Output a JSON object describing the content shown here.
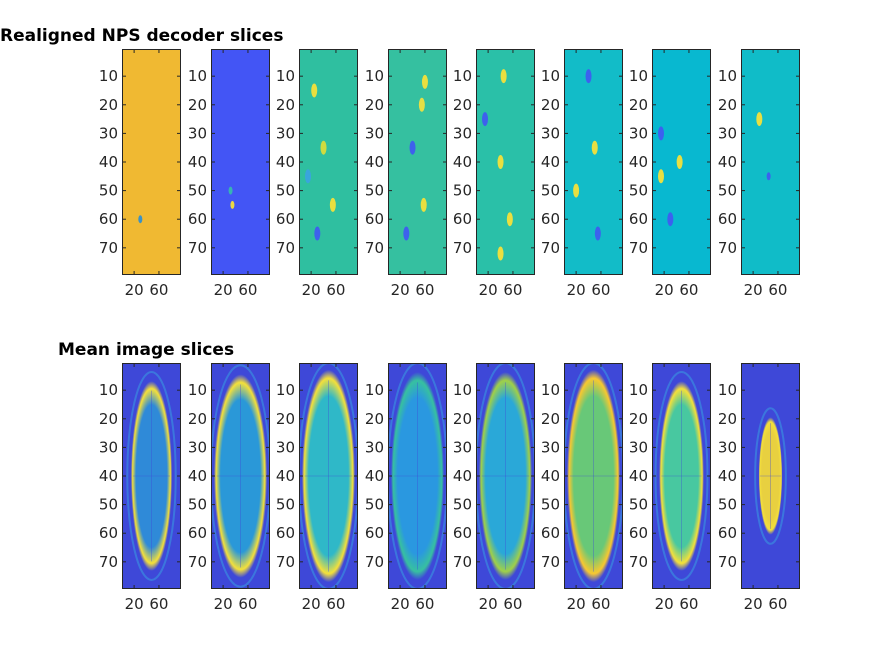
{
  "figure": {
    "rows": [
      {
        "title": "Realigned NPS decoder slices",
        "y_ticks": [
          "10",
          "20",
          "30",
          "40",
          "50",
          "60",
          "70"
        ],
        "x_ticks": [
          "20",
          "60"
        ],
        "panels": [
          {
            "slice": 1,
            "background": "#f0b932",
            "blobs": [
              {
                "y": 60,
                "x": 30,
                "color": "#2f8fd0",
                "size": "small"
              }
            ]
          },
          {
            "slice": 2,
            "background": "#4355f5",
            "blobs": [
              {
                "y": 55,
                "x": 35,
                "color": "#f4e03a",
                "size": "small"
              },
              {
                "y": 50,
                "x": 32,
                "color": "#37b8b0",
                "size": "small"
              }
            ]
          },
          {
            "slice": 3,
            "background": "#2fbfa0",
            "blobs": [
              {
                "y": 15,
                "x": 25,
                "color": "#f4e03a"
              },
              {
                "y": 35,
                "x": 40,
                "color": "#d8dc3a"
              },
              {
                "y": 45,
                "x": 15,
                "color": "#3aa3e0"
              },
              {
                "y": 55,
                "x": 55,
                "color": "#f4e03a"
              },
              {
                "y": 65,
                "x": 30,
                "color": "#3f5cf0"
              }
            ]
          },
          {
            "slice": 4,
            "background": "#35c0a0",
            "blobs": [
              {
                "y": 12,
                "x": 60,
                "color": "#f4e03a"
              },
              {
                "y": 20,
                "x": 55,
                "color": "#f0e040"
              },
              {
                "y": 35,
                "x": 40,
                "color": "#3f5cf0"
              },
              {
                "y": 55,
                "x": 58,
                "color": "#f4e03a"
              },
              {
                "y": 65,
                "x": 30,
                "color": "#3f5cf0"
              }
            ]
          },
          {
            "slice": 5,
            "background": "#2ac0a8",
            "blobs": [
              {
                "y": 10,
                "x": 45,
                "color": "#f4e03a"
              },
              {
                "y": 25,
                "x": 15,
                "color": "#3f5cf0"
              },
              {
                "y": 40,
                "x": 40,
                "color": "#f4e03a"
              },
              {
                "y": 60,
                "x": 55,
                "color": "#f4e03a"
              },
              {
                "y": 72,
                "x": 40,
                "color": "#f4e03a"
              }
            ]
          },
          {
            "slice": 6,
            "background": "#12bcc8",
            "blobs": [
              {
                "y": 10,
                "x": 40,
                "color": "#3f5cf0"
              },
              {
                "y": 35,
                "x": 50,
                "color": "#f4e03a"
              },
              {
                "y": 50,
                "x": 20,
                "color": "#f4e03a"
              },
              {
                "y": 65,
                "x": 55,
                "color": "#3f5cf0"
              }
            ]
          },
          {
            "slice": 7,
            "background": "#08b8d0",
            "blobs": [
              {
                "y": 30,
                "x": 15,
                "color": "#3f5cf0"
              },
              {
                "y": 45,
                "x": 15,
                "color": "#f4e03a"
              },
              {
                "y": 40,
                "x": 45,
                "color": "#f4e03a"
              },
              {
                "y": 60,
                "x": 30,
                "color": "#3f5cf0"
              }
            ]
          },
          {
            "slice": 8,
            "background": "#10bcc8",
            "blobs": [
              {
                "y": 25,
                "x": 30,
                "color": "#f4e03a"
              },
              {
                "y": 45,
                "x": 45,
                "color": "#3f5cf0",
                "size": "small"
              }
            ]
          }
        ]
      },
      {
        "title": "Mean image slices",
        "y_ticks": [
          "10",
          "20",
          "30",
          "40",
          "50",
          "60",
          "70"
        ],
        "x_ticks": [
          "20",
          "60"
        ],
        "panels": [
          {
            "slice": 1,
            "background": "#3e48d8",
            "ellipse": {
              "rx": 0.35,
              "ry": 0.42,
              "fill": "#2f8ad8",
              "rim": "#f4e03a"
            }
          },
          {
            "slice": 2,
            "background": "#3e48d8",
            "ellipse": {
              "rx": 0.45,
              "ry": 0.45,
              "fill": "#2a98d8",
              "rim": "#f4e03a"
            }
          },
          {
            "slice": 3,
            "background": "#3e48d8",
            "ellipse": {
              "rx": 0.45,
              "ry": 0.47,
              "fill": "#2fb8c8",
              "rim": "#f4e03a"
            }
          },
          {
            "slice": 4,
            "background": "#3e48d8",
            "ellipse": {
              "rx": 0.45,
              "ry": 0.46,
              "fill": "#2a98e0",
              "rim": "#37c0a0"
            }
          },
          {
            "slice": 5,
            "background": "#3e48d8",
            "ellipse": {
              "rx": 0.45,
              "ry": 0.46,
              "fill": "#2aa8d8",
              "rim": "#a0d048"
            }
          },
          {
            "slice": 6,
            "background": "#3e48d8",
            "ellipse": {
              "rx": 0.45,
              "ry": 0.47,
              "fill": "#68c878",
              "rim": "#f8c830"
            }
          },
          {
            "slice": 7,
            "background": "#3e48d8",
            "ellipse": {
              "rx": 0.38,
              "ry": 0.42,
              "fill": "#48c8a0",
              "rim": "#f4e03a"
            }
          },
          {
            "slice": 8,
            "background": "#3e48d8",
            "ellipse": {
              "rx": 0.2,
              "ry": 0.26,
              "fill": "#e8d040",
              "rim": "#f4e03a"
            }
          }
        ]
      }
    ]
  }
}
